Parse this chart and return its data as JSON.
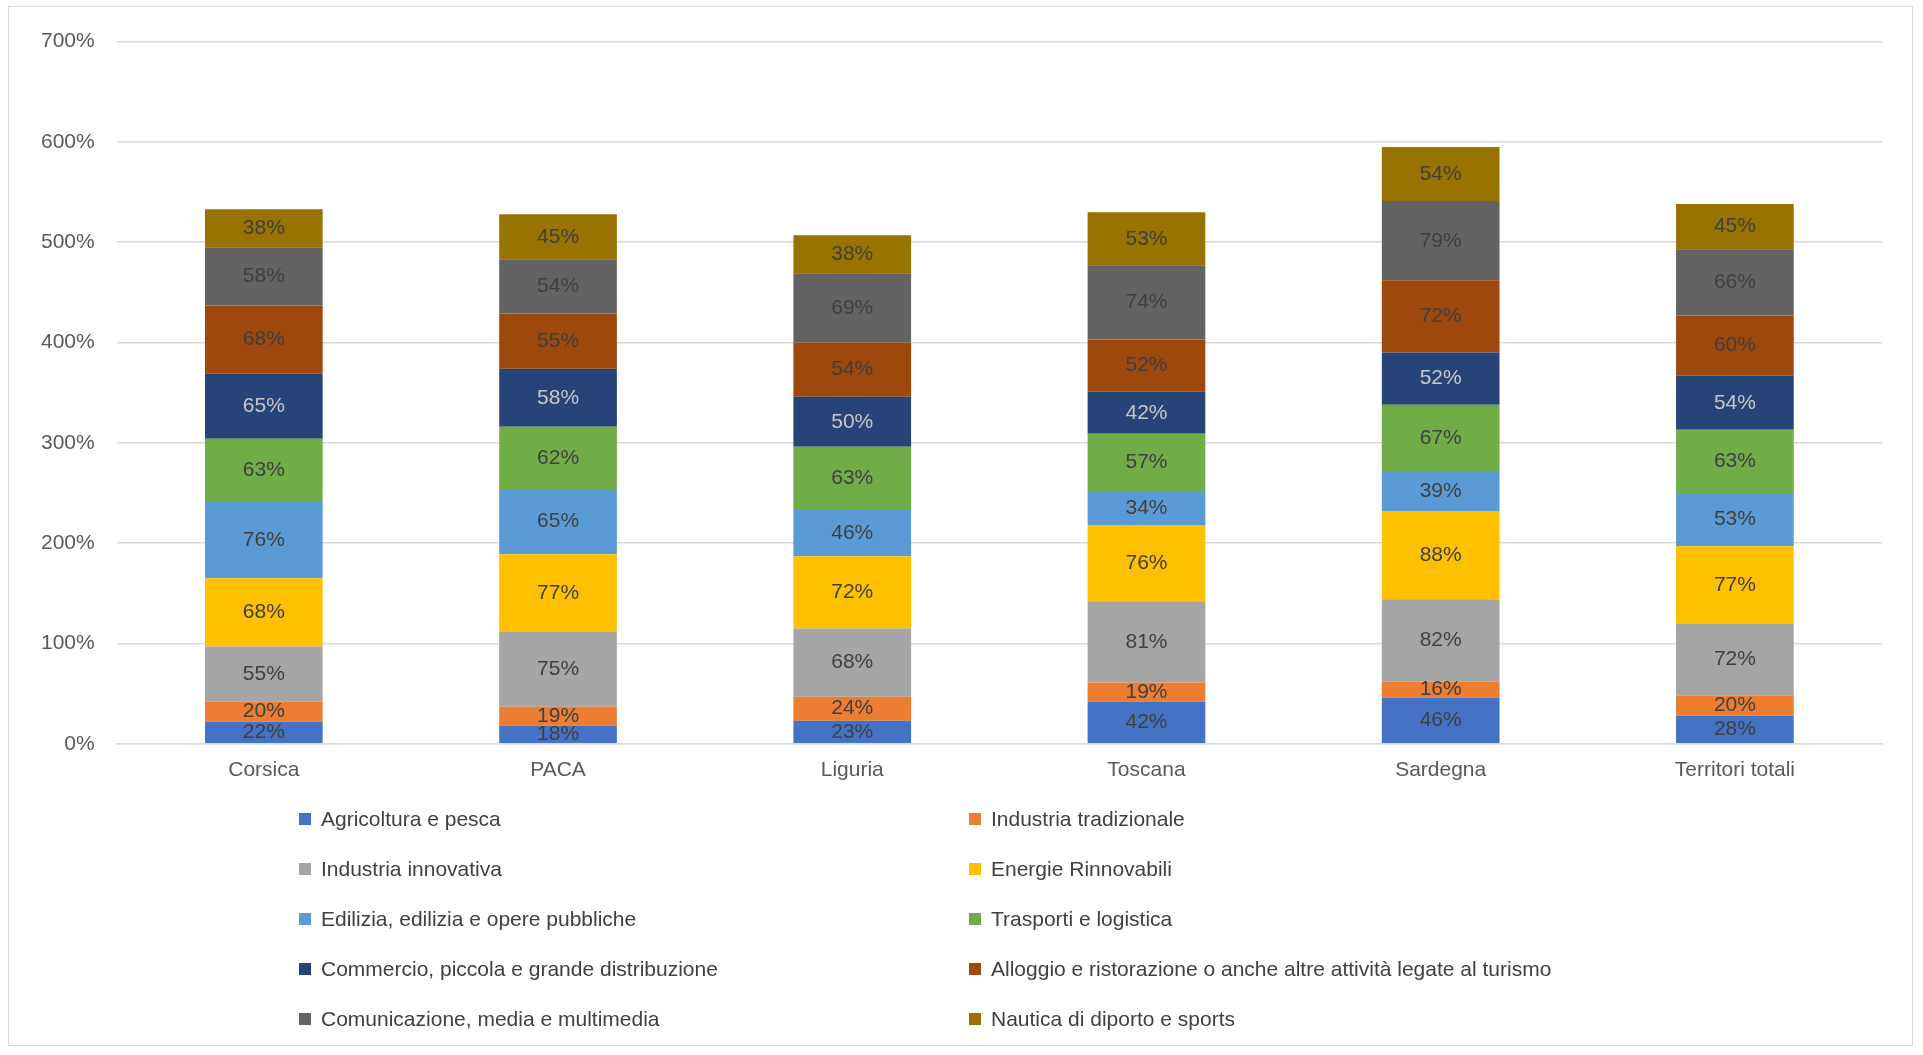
{
  "chart_data": {
    "type": "bar",
    "stacked": true,
    "categories": [
      "Corsica",
      "PACA",
      "Liguria",
      "Toscana",
      "Sardegna",
      "Territori totali"
    ],
    "ylim": [
      0,
      700
    ],
    "yticks": [
      {
        "value": 0,
        "label": "0%"
      },
      {
        "value": 100,
        "label": "100%"
      },
      {
        "value": 200,
        "label": "200%"
      },
      {
        "value": 300,
        "label": "300%"
      },
      {
        "value": 400,
        "label": "400%"
      },
      {
        "value": 500,
        "label": "500%"
      },
      {
        "value": 600,
        "label": "600%"
      },
      {
        "value": 700,
        "label": "700%"
      }
    ],
    "grid": "y",
    "legend": "bottom",
    "series": [
      {
        "name": "Agricoltura e pesca",
        "color": "#4472c4",
        "values": [
          22,
          18,
          23,
          42,
          46,
          28
        ],
        "value_labels": [
          "22%",
          "18%",
          "23%",
          "42%",
          "46%",
          "28%"
        ]
      },
      {
        "name": "Industria tradizionale",
        "color": "#ed7d31",
        "values": [
          20,
          19,
          24,
          19,
          16,
          20
        ],
        "value_labels": [
          "20%",
          "19%",
          "24%",
          "19%",
          "16%",
          "20%"
        ]
      },
      {
        "name": "Industria innovativa",
        "color": "#a5a5a5",
        "values": [
          55,
          75,
          68,
          81,
          82,
          72
        ],
        "value_labels": [
          "55%",
          "75%",
          "68%",
          "81%",
          "82%",
          "72%"
        ]
      },
      {
        "name": "Energie Rinnovabili",
        "color": "#ffc000",
        "values": [
          68,
          77,
          72,
          76,
          88,
          77
        ],
        "value_labels": [
          "68%",
          "77%",
          "72%",
          "76%",
          "88%",
          "77%"
        ]
      },
      {
        "name": "Edilizia, edilizia e opere pubbliche",
        "color": "#5b9bd5",
        "values": [
          76,
          65,
          46,
          34,
          39,
          53
        ],
        "value_labels": [
          "76%",
          "65%",
          "46%",
          "34%",
          "39%",
          "53%"
        ]
      },
      {
        "name": "Trasporti e logistica",
        "color": "#70ad47",
        "values": [
          63,
          62,
          63,
          57,
          67,
          63
        ],
        "value_labels": [
          "63%",
          "62%",
          "63%",
          "57%",
          "67%",
          "63%"
        ]
      },
      {
        "name": "Commercio, piccola e grande distribuzione",
        "color": "#264478",
        "values": [
          65,
          58,
          50,
          42,
          52,
          54
        ],
        "value_labels": [
          "65%",
          "58%",
          "50%",
          "42%",
          "52%",
          "54%"
        ]
      },
      {
        "name": "Alloggio e ristorazione o anche altre attività legate al turismo",
        "color": "#9e480e",
        "values": [
          68,
          55,
          54,
          52,
          72,
          60
        ],
        "value_labels": [
          "68%",
          "55%",
          "54%",
          "52%",
          "72%",
          "60%"
        ]
      },
      {
        "name": "Comunicazione, media e multimedia",
        "color": "#636363",
        "values": [
          58,
          54,
          69,
          74,
          79,
          66
        ],
        "value_labels": [
          "58%",
          "54%",
          "69%",
          "74%",
          "79%",
          "66%"
        ]
      },
      {
        "name": "Nautica di diporto e sports",
        "color": "#997300",
        "values": [
          38,
          45,
          38,
          53,
          54,
          45
        ],
        "value_labels": [
          "38%",
          "45%",
          "38%",
          "53%",
          "54%",
          "45%"
        ]
      }
    ]
  }
}
